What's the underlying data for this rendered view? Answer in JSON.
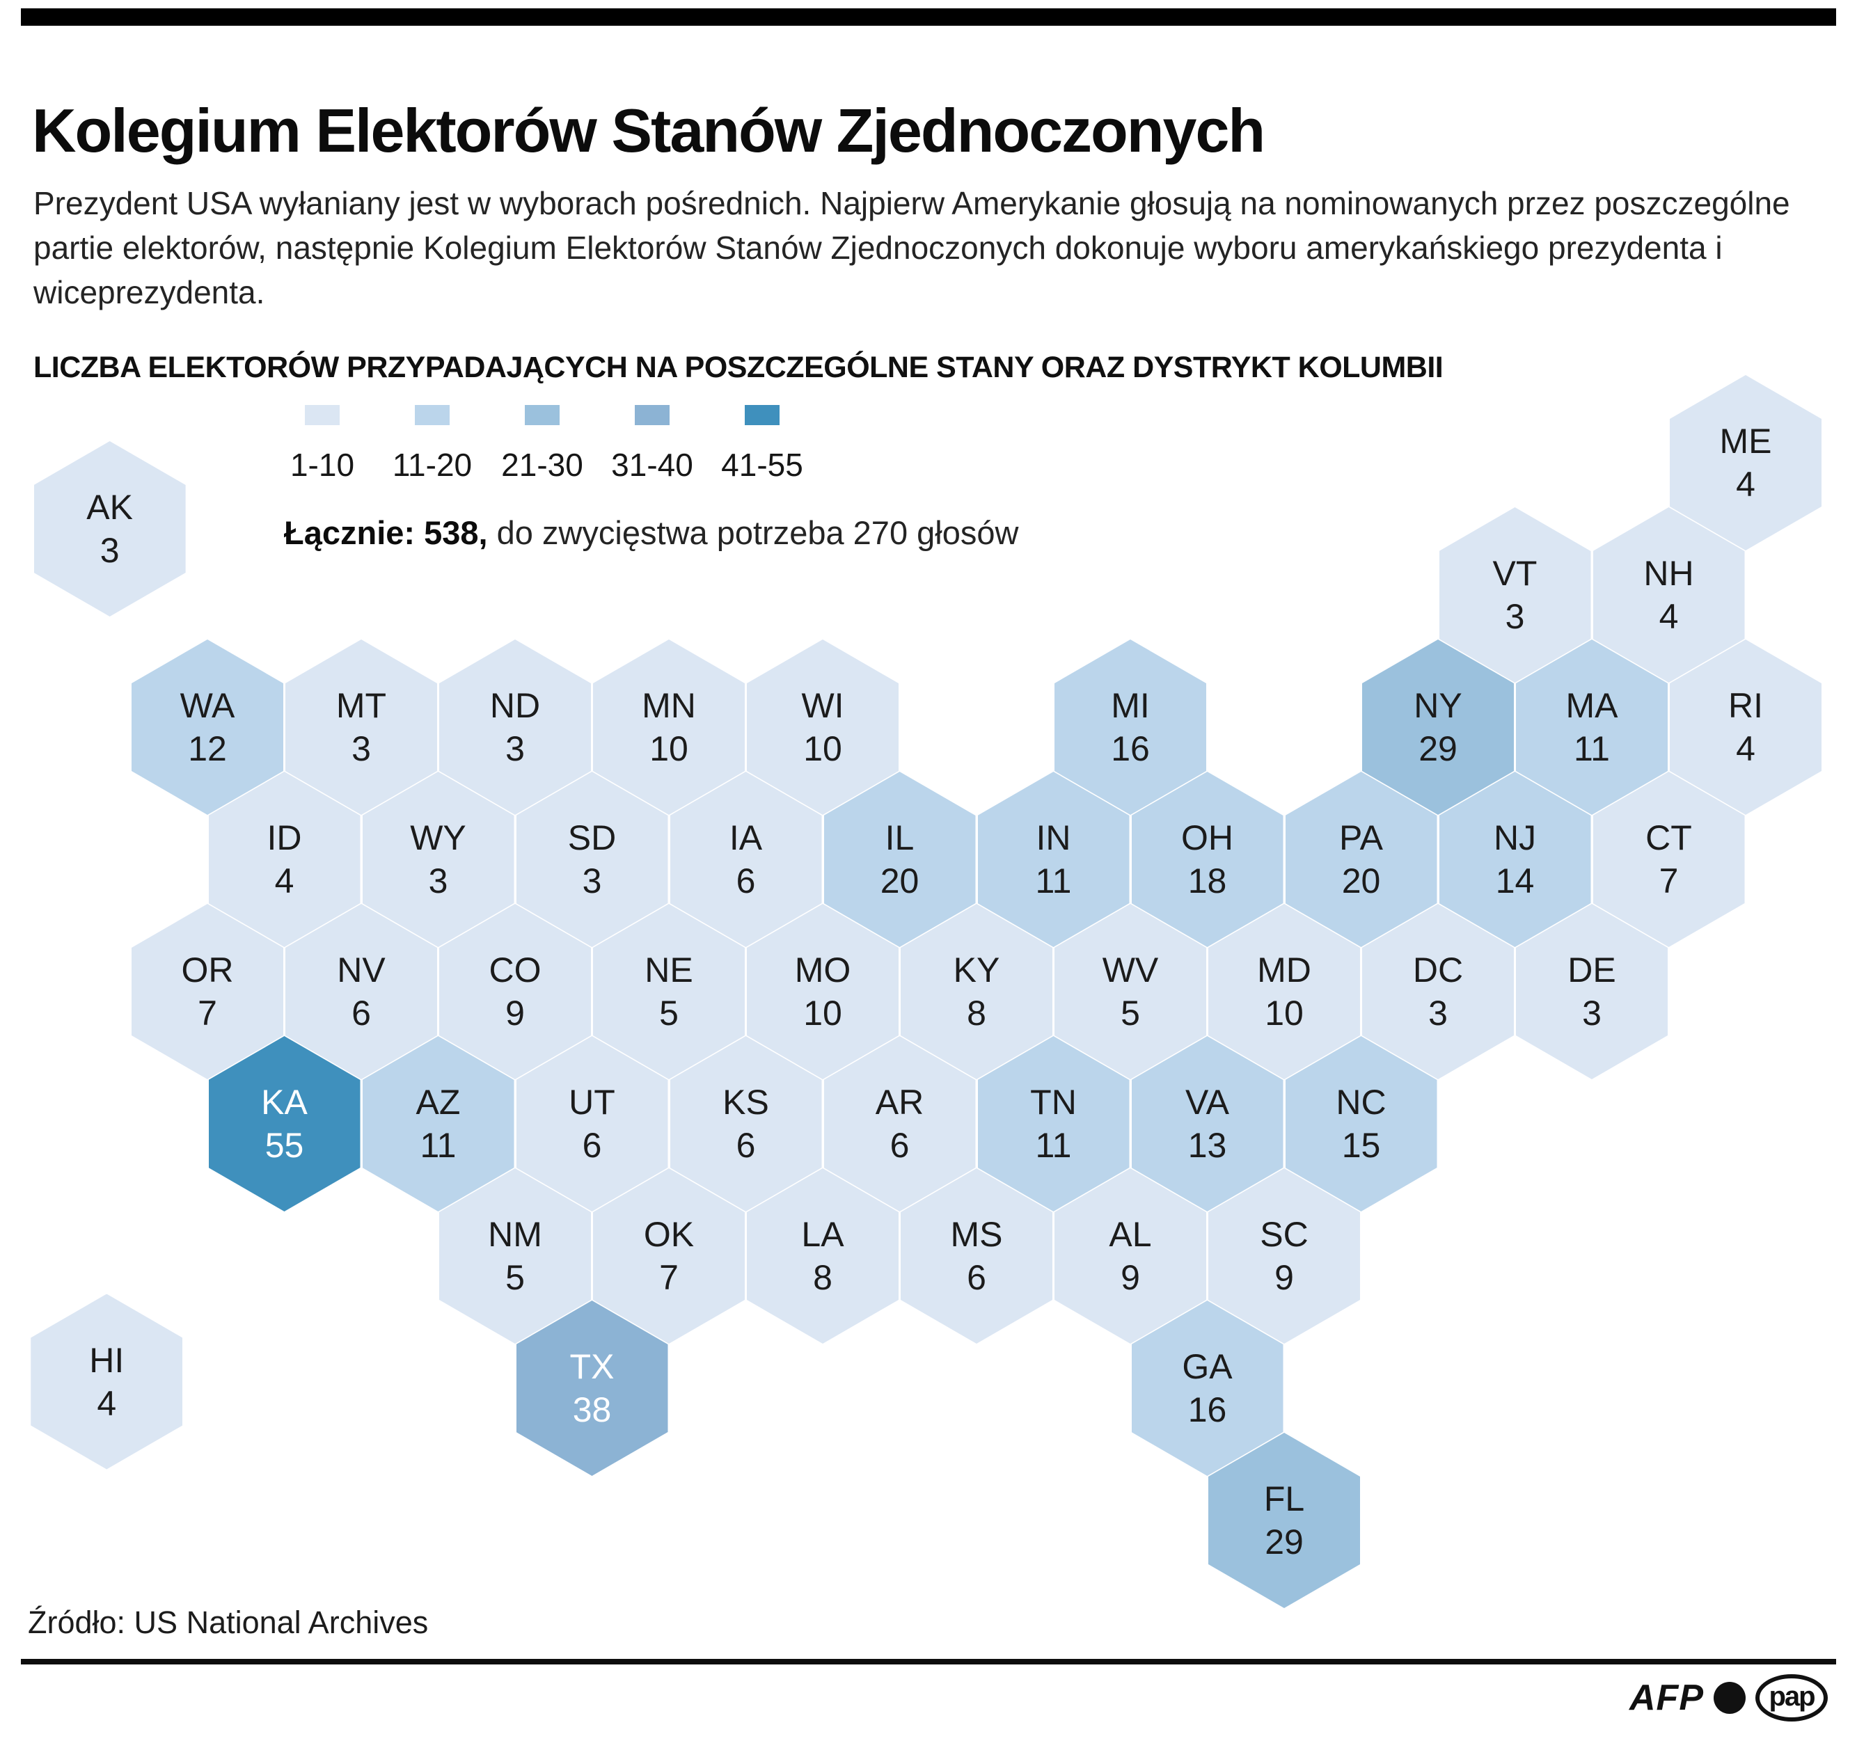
{
  "page": {
    "title": "Kolegium Elektorów Stanów Zjednoczonych",
    "intro": "Prezydent USA wyłaniany jest w wyborach pośrednich. Najpierw Amerykanie głosują na nominowanych przez poszczególne partie elektorów, następnie Kolegium Elektorów Stanów Zjednoczonych dokonuje wyboru amerykańskiego prezydenta i wiceprezydenta.",
    "section_heading": "LICZBA ELEKTORÓW PRZYPADAJĄCYCH NA POSZCZEGÓLNE STANY ORAZ DYSTRYKT KOLUMBII",
    "source": "Źródło: US National Archives",
    "logos": {
      "afp": "AFP",
      "pap": "pap"
    }
  },
  "legend": {
    "total_bold": "Łącznie: 538,",
    "total_rest": " do zwycięstwa potrzeba 270 głosów",
    "buckets": [
      {
        "label": "1-10",
        "color": "#dbe6f3"
      },
      {
        "label": "11-20",
        "color": "#bbd5eb"
      },
      {
        "label": "21-30",
        "color": "#9bc1dd"
      },
      {
        "label": "31-40",
        "color": "#8cb3d4"
      },
      {
        "label": "41-55",
        "color": "#3f90bd"
      }
    ]
  },
  "chart_data": {
    "type": "heatmap",
    "subtype": "hex-cartogram",
    "title": "LICZBA ELEKTORÓW PRZYPADAJĄCYCH NA POSZCZEGÓLNE STANY ORAZ DYSTRYKT KOLUMBII",
    "total_electors": 538,
    "majority_needed": 270,
    "bucket_ranges": [
      "1-10",
      "11-20",
      "21-30",
      "31-40",
      "41-55"
    ],
    "bucket_colors": [
      "#dbe6f3",
      "#bbd5eb",
      "#9bc1dd",
      "#8cb3d4",
      "#3f90bd"
    ],
    "states": [
      {
        "abbr": "ME",
        "value": 4,
        "row": 0,
        "col": 20
      },
      {
        "abbr": "AK",
        "value": 3,
        "row": 0.5,
        "col": -1.27
      },
      {
        "abbr": "VT",
        "value": 3,
        "row": 1,
        "col": 17
      },
      {
        "abbr": "NH",
        "value": 4,
        "row": 1,
        "col": 19
      },
      {
        "abbr": "WA",
        "value": 12,
        "row": 2,
        "col": 0
      },
      {
        "abbr": "MT",
        "value": 3,
        "row": 2,
        "col": 2
      },
      {
        "abbr": "ND",
        "value": 3,
        "row": 2,
        "col": 4
      },
      {
        "abbr": "MN",
        "value": 10,
        "row": 2,
        "col": 6
      },
      {
        "abbr": "WI",
        "value": 10,
        "row": 2,
        "col": 8
      },
      {
        "abbr": "MI",
        "value": 16,
        "row": 2,
        "col": 12
      },
      {
        "abbr": "NY",
        "value": 29,
        "row": 2,
        "col": 16
      },
      {
        "abbr": "MA",
        "value": 11,
        "row": 2,
        "col": 18
      },
      {
        "abbr": "RI",
        "value": 4,
        "row": 2,
        "col": 20
      },
      {
        "abbr": "ID",
        "value": 4,
        "row": 3,
        "col": 1
      },
      {
        "abbr": "WY",
        "value": 3,
        "row": 3,
        "col": 3
      },
      {
        "abbr": "SD",
        "value": 3,
        "row": 3,
        "col": 5
      },
      {
        "abbr": "IA",
        "value": 6,
        "row": 3,
        "col": 7
      },
      {
        "abbr": "IL",
        "value": 20,
        "row": 3,
        "col": 9
      },
      {
        "abbr": "IN",
        "value": 11,
        "row": 3,
        "col": 11
      },
      {
        "abbr": "OH",
        "value": 18,
        "row": 3,
        "col": 13
      },
      {
        "abbr": "PA",
        "value": 20,
        "row": 3,
        "col": 15
      },
      {
        "abbr": "NJ",
        "value": 14,
        "row": 3,
        "col": 17
      },
      {
        "abbr": "CT",
        "value": 7,
        "row": 3,
        "col": 19
      },
      {
        "abbr": "OR",
        "value": 7,
        "row": 4,
        "col": 0
      },
      {
        "abbr": "NV",
        "value": 6,
        "row": 4,
        "col": 2
      },
      {
        "abbr": "CO",
        "value": 9,
        "row": 4,
        "col": 4
      },
      {
        "abbr": "NE",
        "value": 5,
        "row": 4,
        "col": 6
      },
      {
        "abbr": "MO",
        "value": 10,
        "row": 4,
        "col": 8
      },
      {
        "abbr": "KY",
        "value": 8,
        "row": 4,
        "col": 10
      },
      {
        "abbr": "WV",
        "value": 5,
        "row": 4,
        "col": 12
      },
      {
        "abbr": "MD",
        "value": 10,
        "row": 4,
        "col": 14
      },
      {
        "abbr": "DC",
        "value": 3,
        "row": 4,
        "col": 16
      },
      {
        "abbr": "DE",
        "value": 3,
        "row": 4,
        "col": 18
      },
      {
        "abbr": "KA",
        "value": 55,
        "row": 5,
        "col": 1
      },
      {
        "abbr": "AZ",
        "value": 11,
        "row": 5,
        "col": 3
      },
      {
        "abbr": "UT",
        "value": 6,
        "row": 5,
        "col": 5
      },
      {
        "abbr": "KS",
        "value": 6,
        "row": 5,
        "col": 7
      },
      {
        "abbr": "AR",
        "value": 6,
        "row": 5,
        "col": 9
      },
      {
        "abbr": "TN",
        "value": 11,
        "row": 5,
        "col": 11
      },
      {
        "abbr": "VA",
        "value": 13,
        "row": 5,
        "col": 13
      },
      {
        "abbr": "NC",
        "value": 15,
        "row": 5,
        "col": 15
      },
      {
        "abbr": "NM",
        "value": 5,
        "row": 6,
        "col": 4
      },
      {
        "abbr": "OK",
        "value": 7,
        "row": 6,
        "col": 6
      },
      {
        "abbr": "LA",
        "value": 8,
        "row": 6,
        "col": 8
      },
      {
        "abbr": "MS",
        "value": 6,
        "row": 6,
        "col": 10
      },
      {
        "abbr": "AL",
        "value": 9,
        "row": 6,
        "col": 12
      },
      {
        "abbr": "SC",
        "value": 9,
        "row": 6,
        "col": 14
      },
      {
        "abbr": "HI",
        "value": 4,
        "row": 6.95,
        "col": -1.31
      },
      {
        "abbr": "TX",
        "value": 38,
        "row": 7,
        "col": 5
      },
      {
        "abbr": "GA",
        "value": 16,
        "row": 7,
        "col": 13
      },
      {
        "abbr": "FL",
        "value": 29,
        "row": 8,
        "col": 14
      }
    ]
  }
}
